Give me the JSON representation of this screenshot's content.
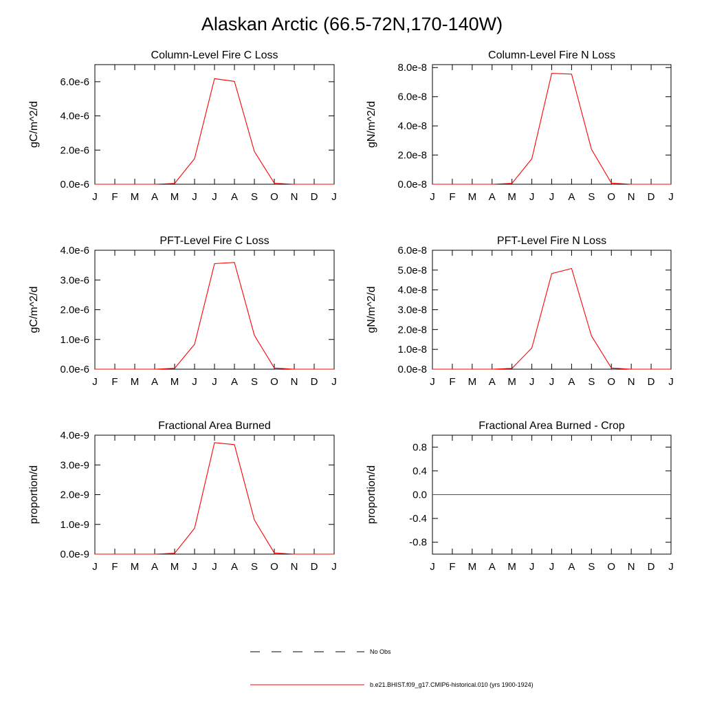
{
  "title": "Alaskan Arctic (66.5-72N,170-140W)",
  "colors": {
    "model": "#ff0000",
    "axis": "#000000"
  },
  "chart_data": [
    {
      "type": "line",
      "title": "Column-Level Fire C Loss",
      "ylabel": "gC/m^2/d",
      "categories": [
        "J",
        "F",
        "M",
        "A",
        "M",
        "J",
        "J",
        "A",
        "S",
        "O",
        "N",
        "D",
        "J"
      ],
      "ylim": [
        0,
        7e-06
      ],
      "yticks": [
        0,
        2e-06,
        4e-06,
        6e-06
      ],
      "ytick_labels": [
        "0.0e-6",
        "2.0e-6",
        "4.0e-6",
        "6.0e-6"
      ],
      "series": [
        {
          "name": "b.e21.BHIST.f09_g17.CMIP6-historical.010 (yrs 1900-1924)",
          "values": [
            0,
            0,
            0,
            0,
            5e-08,
            1.5e-06,
            6.18e-06,
            6.02e-06,
            1.92e-06,
            6e-08,
            0,
            0,
            0
          ]
        }
      ]
    },
    {
      "type": "line",
      "title": "Column-Level Fire N Loss",
      "ylabel": "gN/m^2/d",
      "categories": [
        "J",
        "F",
        "M",
        "A",
        "M",
        "J",
        "J",
        "A",
        "S",
        "O",
        "N",
        "D",
        "J"
      ],
      "ylim": [
        0,
        8.2e-08
      ],
      "yticks": [
        0,
        2e-08,
        4e-08,
        6e-08,
        8e-08
      ],
      "ytick_labels": [
        "0.0e-8",
        "2.0e-8",
        "4.0e-8",
        "6.0e-8",
        "8.0e-8"
      ],
      "series": [
        {
          "name": "b.e21.BHIST.f09_g17.CMIP6-historical.010 (yrs 1900-1924)",
          "values": [
            0,
            0,
            0,
            0,
            6e-10,
            1.75e-08,
            7.6e-08,
            7.55e-08,
            2.4e-08,
            8e-10,
            0,
            0,
            0
          ]
        }
      ]
    },
    {
      "type": "line",
      "title": "PFT-Level Fire C Loss",
      "ylabel": "gC/m^2/d",
      "categories": [
        "J",
        "F",
        "M",
        "A",
        "M",
        "J",
        "J",
        "A",
        "S",
        "O",
        "N",
        "D",
        "J"
      ],
      "ylim": [
        0,
        4e-06
      ],
      "yticks": [
        0,
        1e-06,
        2e-06,
        3e-06,
        4e-06
      ],
      "ytick_labels": [
        "0.0e-6",
        "1.0e-6",
        "2.0e-6",
        "3.0e-6",
        "4.0e-6"
      ],
      "series": [
        {
          "name": "b.e21.BHIST.f09_g17.CMIP6-historical.010 (yrs 1900-1924)",
          "values": [
            0,
            0,
            0,
            0,
            3e-08,
            8.4e-07,
            3.55e-06,
            3.59e-06,
            1.14e-06,
            4e-08,
            0,
            0,
            0
          ]
        }
      ]
    },
    {
      "type": "line",
      "title": "PFT-Level Fire N Loss",
      "ylabel": "gN/m^2/d",
      "categories": [
        "J",
        "F",
        "M",
        "A",
        "M",
        "J",
        "J",
        "A",
        "S",
        "O",
        "N",
        "D",
        "J"
      ],
      "ylim": [
        0,
        6e-08
      ],
      "yticks": [
        0,
        1e-08,
        2e-08,
        3e-08,
        4e-08,
        5e-08,
        6e-08
      ],
      "ytick_labels": [
        "0.0e-8",
        "1.0e-8",
        "2.0e-8",
        "3.0e-8",
        "4.0e-8",
        "5.0e-8",
        "6.0e-8"
      ],
      "series": [
        {
          "name": "b.e21.BHIST.f09_g17.CMIP6-historical.010 (yrs 1900-1924)",
          "values": [
            0,
            0,
            0,
            0,
            4e-10,
            1.07e-08,
            4.82e-08,
            5.08e-08,
            1.68e-08,
            6e-10,
            0,
            0,
            0
          ]
        }
      ]
    },
    {
      "type": "line",
      "title": "Fractional Area Burned",
      "ylabel": "proportion/d",
      "categories": [
        "J",
        "F",
        "M",
        "A",
        "M",
        "J",
        "J",
        "A",
        "S",
        "O",
        "N",
        "D",
        "J"
      ],
      "ylim": [
        0,
        4e-09
      ],
      "yticks": [
        0,
        1e-09,
        2e-09,
        3e-09,
        4e-09
      ],
      "ytick_labels": [
        "0.0e-9",
        "1.0e-9",
        "2.0e-9",
        "3.0e-9",
        "4.0e-9"
      ],
      "series": [
        {
          "name": "b.e21.BHIST.f09_g17.CMIP6-historical.010 (yrs 1900-1924)",
          "values": [
            0,
            0,
            0,
            0,
            3e-11,
            8.7e-10,
            3.75e-09,
            3.68e-09,
            1.15e-09,
            4e-11,
            0,
            0,
            0
          ]
        }
      ]
    },
    {
      "type": "line",
      "title": "Fractional Area Burned - Crop",
      "ylabel": "proportion/d",
      "categories": [
        "J",
        "F",
        "M",
        "A",
        "M",
        "J",
        "J",
        "A",
        "S",
        "O",
        "N",
        "D",
        "J"
      ],
      "ylim": [
        -1,
        1
      ],
      "yticks": [
        -0.8,
        -0.4,
        0,
        0.4,
        0.8
      ],
      "ytick_labels": [
        "-0.8",
        "-0.4",
        "0.0",
        "0.4",
        "0.8"
      ],
      "series": [
        {
          "name": "b.e21.BHIST.f09_g17.CMIP6-historical.010 (yrs 1900-1924)",
          "values": [
            0,
            0,
            0,
            0,
            0,
            0,
            0,
            0,
            0,
            0,
            0,
            0,
            0
          ]
        }
      ]
    }
  ],
  "legend": {
    "items": [
      {
        "label": "No Obs",
        "style": "dashed",
        "color": "#000000"
      },
      {
        "label": "b.e21.BHIST.f09_g17.CMIP6-historical.010 (yrs 1900-1924)",
        "style": "solid",
        "color": "#ff0000"
      }
    ]
  }
}
